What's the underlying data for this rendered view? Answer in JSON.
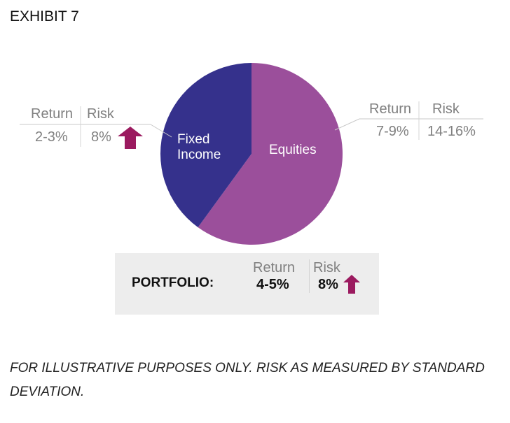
{
  "title": "EXHIBIT 7",
  "chart_data": {
    "type": "pie",
    "slices": [
      {
        "label": "Equities",
        "value": 60,
        "color": "#9b4f9b",
        "return": "7-9%",
        "risk": "14-16%"
      },
      {
        "label": "Fixed Income",
        "value": 40,
        "color": "#35318c",
        "return": "2-3%",
        "risk": "8%"
      }
    ],
    "column_headers": {
      "return": "Return",
      "risk": "Risk"
    }
  },
  "fixed_income": {
    "label_line1": "Fixed",
    "label_line2": "Income"
  },
  "portfolio": {
    "label": "PORTFOLIO:",
    "return_header": "Return",
    "risk_header": "Risk",
    "return": "4-5%",
    "risk": "8%"
  },
  "arrow_color": "#9b1a5f",
  "footnote": "FOR ILLUSTRATIVE PURPOSES ONLY. RISK AS MEASURED BY STANDARD DEVIATION."
}
